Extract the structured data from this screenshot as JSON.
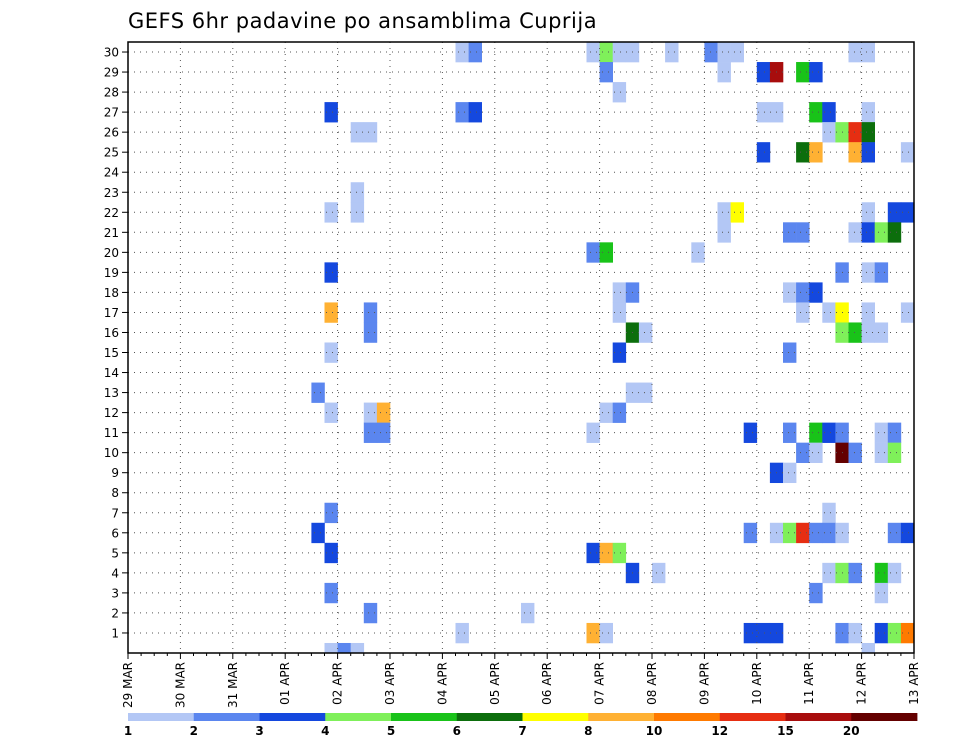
{
  "chart_data": {
    "type": "heatmap",
    "title": "GEFS 6hr padavine po ansamblima Cuprija",
    "xlabel": "",
    "ylabel": "",
    "x_tick_labels": [
      "29 MAR",
      "30 MAR",
      "31 MAR",
      "01 APR",
      "02 APR",
      "03 APR",
      "04 APR",
      "05 APR",
      "06 APR",
      "07 APR",
      "08 APR",
      "09 APR",
      "10 APR",
      "11 APR",
      "12 APR",
      "13 APR"
    ],
    "y_members": [
      1,
      2,
      3,
      4,
      5,
      6,
      7,
      8,
      9,
      10,
      11,
      12,
      13,
      14,
      15,
      16,
      17,
      18,
      19,
      20,
      21,
      22,
      23,
      24,
      25,
      26,
      27,
      28,
      29,
      30
    ],
    "ylim": [
      0,
      30
    ],
    "x_steps_total": 60,
    "grid": true,
    "color_levels": [
      1,
      2,
      3,
      4,
      5,
      6,
      7,
      8,
      10,
      12,
      15,
      20
    ],
    "colors": [
      "#b3c7f5",
      "#5b86ef",
      "#1448de",
      "#7ff05a",
      "#19c319",
      "#0c6e0c",
      "#ffff00",
      "#ffb133",
      "#ff7a00",
      "#e62e12",
      "#a80d0d",
      "#640000"
    ],
    "cells": [
      [
        26,
        30,
        1
      ],
      [
        27,
        30,
        2
      ],
      [
        36,
        30,
        1
      ],
      [
        37,
        30,
        4
      ],
      [
        38,
        30,
        1
      ],
      [
        39,
        30,
        1
      ],
      [
        42,
        30,
        1
      ],
      [
        45,
        30,
        2
      ],
      [
        46,
        30,
        1
      ],
      [
        47,
        30,
        1
      ],
      [
        56,
        30,
        1
      ],
      [
        57,
        30,
        1
      ],
      [
        37,
        29,
        2
      ],
      [
        46,
        29,
        1
      ],
      [
        49,
        29,
        3
      ],
      [
        50,
        29,
        11
      ],
      [
        52,
        29,
        5
      ],
      [
        53,
        29,
        3
      ],
      [
        38,
        28,
        1
      ],
      [
        16,
        27,
        3
      ],
      [
        26,
        27,
        2
      ],
      [
        27,
        27,
        3
      ],
      [
        49,
        27,
        1
      ],
      [
        50,
        27,
        1
      ],
      [
        53,
        27,
        5
      ],
      [
        54,
        27,
        3
      ],
      [
        57,
        27,
        1
      ],
      [
        18,
        26,
        1
      ],
      [
        19,
        26,
        1
      ],
      [
        54,
        26,
        1
      ],
      [
        55,
        26,
        4
      ],
      [
        56,
        26,
        10
      ],
      [
        57,
        26,
        6
      ],
      [
        49,
        25,
        3
      ],
      [
        52,
        25,
        6
      ],
      [
        53,
        25,
        8
      ],
      [
        56,
        25,
        8
      ],
      [
        57,
        25,
        3
      ],
      [
        60,
        25,
        1
      ],
      [
        18,
        23,
        1
      ],
      [
        16,
        22,
        1
      ],
      [
        18,
        22,
        1
      ],
      [
        46,
        22,
        1
      ],
      [
        47,
        22,
        7
      ],
      [
        57,
        22,
        1
      ],
      [
        59,
        22,
        3
      ],
      [
        60,
        22,
        3
      ],
      [
        46,
        21,
        1
      ],
      [
        51,
        21,
        2
      ],
      [
        52,
        21,
        2
      ],
      [
        56,
        21,
        1
      ],
      [
        57,
        21,
        3
      ],
      [
        58,
        21,
        4
      ],
      [
        59,
        21,
        6
      ],
      [
        36,
        20,
        2
      ],
      [
        37,
        20,
        5
      ],
      [
        44,
        20,
        1
      ],
      [
        16,
        19,
        3
      ],
      [
        55,
        19,
        2
      ],
      [
        57,
        19,
        1
      ],
      [
        58,
        19,
        2
      ],
      [
        38,
        18,
        1
      ],
      [
        39,
        18,
        2
      ],
      [
        51,
        18,
        1
      ],
      [
        52,
        18,
        2
      ],
      [
        53,
        18,
        3
      ],
      [
        16,
        17,
        8
      ],
      [
        19,
        17,
        2
      ],
      [
        38,
        17,
        1
      ],
      [
        52,
        17,
        1
      ],
      [
        54,
        17,
        1
      ],
      [
        55,
        17,
        7
      ],
      [
        57,
        17,
        1
      ],
      [
        60,
        17,
        1
      ],
      [
        19,
        16,
        2
      ],
      [
        39,
        16,
        6
      ],
      [
        40,
        16,
        1
      ],
      [
        55,
        16,
        4
      ],
      [
        56,
        16,
        5
      ],
      [
        57,
        16,
        1
      ],
      [
        58,
        16,
        1
      ],
      [
        16,
        15,
        1
      ],
      [
        38,
        15,
        3
      ],
      [
        51,
        15,
        2
      ],
      [
        15,
        13,
        2
      ],
      [
        16,
        12,
        1
      ],
      [
        19,
        12,
        1
      ],
      [
        20,
        12,
        8
      ],
      [
        37,
        12,
        1
      ],
      [
        38,
        12,
        2
      ],
      [
        39,
        13,
        1
      ],
      [
        40,
        13,
        1
      ],
      [
        19,
        11,
        2
      ],
      [
        20,
        11,
        2
      ],
      [
        36,
        11,
        1
      ],
      [
        48,
        11,
        3
      ],
      [
        51,
        11,
        2
      ],
      [
        53,
        11,
        5
      ],
      [
        54,
        11,
        3
      ],
      [
        55,
        11,
        2
      ],
      [
        58,
        11,
        1
      ],
      [
        59,
        11,
        2
      ],
      [
        52,
        10,
        2
      ],
      [
        53,
        10,
        1
      ],
      [
        55,
        10,
        12
      ],
      [
        56,
        10,
        2
      ],
      [
        58,
        10,
        1
      ],
      [
        59,
        10,
        4
      ],
      [
        50,
        9,
        3
      ],
      [
        51,
        9,
        1
      ],
      [
        16,
        7,
        2
      ],
      [
        54,
        7,
        1
      ],
      [
        15,
        6,
        3
      ],
      [
        48,
        6,
        2
      ],
      [
        50,
        6,
        1
      ],
      [
        51,
        6,
        4
      ],
      [
        52,
        6,
        10
      ],
      [
        53,
        6,
        2
      ],
      [
        54,
        6,
        2
      ],
      [
        55,
        6,
        1
      ],
      [
        59,
        6,
        2
      ],
      [
        60,
        6,
        3
      ],
      [
        16,
        5,
        3
      ],
      [
        36,
        5,
        3
      ],
      [
        37,
        5,
        8
      ],
      [
        38,
        5,
        4
      ],
      [
        39,
        4,
        3
      ],
      [
        41,
        4,
        1
      ],
      [
        54,
        4,
        1
      ],
      [
        55,
        4,
        4
      ],
      [
        56,
        4,
        2
      ],
      [
        58,
        4,
        5
      ],
      [
        59,
        4,
        1
      ],
      [
        16,
        3,
        2
      ],
      [
        53,
        3,
        2
      ],
      [
        58,
        3,
        1
      ],
      [
        19,
        2,
        2
      ],
      [
        31,
        2,
        1
      ],
      [
        26,
        1,
        1
      ],
      [
        36,
        1,
        8
      ],
      [
        37,
        1,
        1
      ],
      [
        48,
        1,
        3
      ],
      [
        49,
        1,
        3
      ],
      [
        50,
        1,
        3
      ],
      [
        55,
        1,
        2
      ],
      [
        56,
        1,
        1
      ],
      [
        58,
        1,
        3
      ],
      [
        59,
        1,
        4
      ],
      [
        60,
        1,
        9
      ],
      [
        16,
        0,
        1
      ],
      [
        17,
        0,
        2
      ],
      [
        18,
        0,
        1
      ],
      [
        57,
        0,
        1
      ]
    ]
  }
}
